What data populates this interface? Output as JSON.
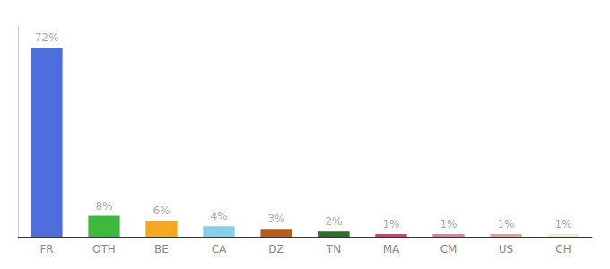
{
  "chart_data": {
    "type": "bar",
    "categories": [
      "FR",
      "OTH",
      "BE",
      "CA",
      "DZ",
      "TN",
      "MA",
      "CM",
      "US",
      "CH"
    ],
    "values": [
      72,
      8,
      6,
      4,
      3,
      2,
      1,
      1,
      1,
      1
    ],
    "value_labels": [
      "72%",
      "8%",
      "6%",
      "4%",
      "3%",
      "2%",
      "1%",
      "1%",
      "1%",
      "1%"
    ],
    "colors": [
      "#4e6fdb",
      "#3dba3d",
      "#f5a623",
      "#87ceeb",
      "#b85c1a",
      "#2d6e2d",
      "#e8357a",
      "#e87a9a",
      "#e8a090",
      "#f0eccc"
    ],
    "ylim": [
      0,
      80
    ],
    "grid": false,
    "data_labels": true,
    "tick_labels": "x"
  }
}
